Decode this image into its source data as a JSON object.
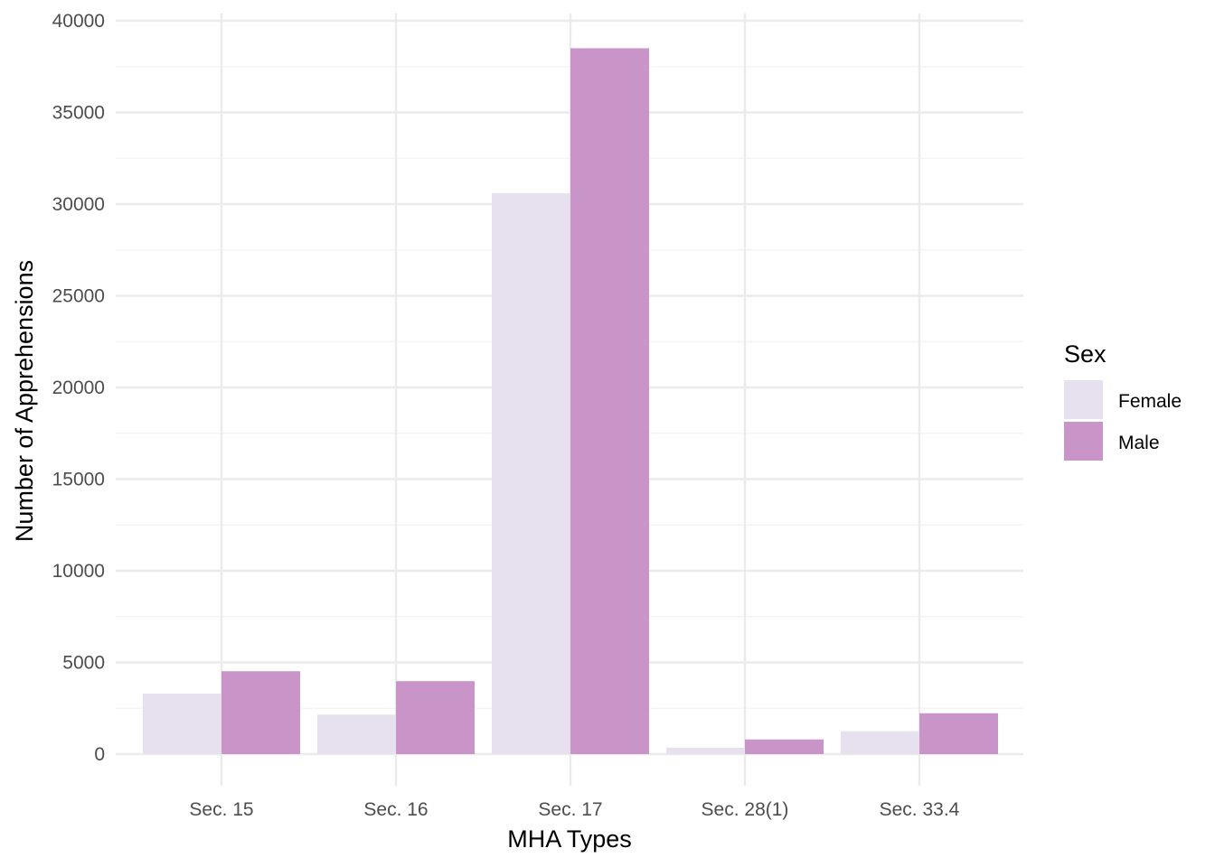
{
  "chart_data": {
    "type": "bar",
    "title": "",
    "xlabel": "MHA Types",
    "ylabel": "Number of Apprehensions",
    "categories": [
      "Sec. 15",
      "Sec. 16",
      "Sec. 17",
      "Sec. 28(1)",
      "Sec. 33.4"
    ],
    "series": [
      {
        "name": "Female",
        "color": "#e6e0ef",
        "values": [
          3300,
          2150,
          30600,
          350,
          1250
        ]
      },
      {
        "name": "Male",
        "color": "#c994c7",
        "values": [
          4520,
          3980,
          38500,
          800,
          2230
        ]
      }
    ],
    "ylim": [
      0,
      40000
    ],
    "yticks": [
      "0",
      "5000",
      "10000",
      "15000",
      "20000",
      "25000",
      "30000",
      "35000",
      "40000"
    ],
    "grid": true,
    "legend": {
      "title": "Sex",
      "position": "right",
      "entries": [
        "Female",
        "Male"
      ]
    }
  }
}
